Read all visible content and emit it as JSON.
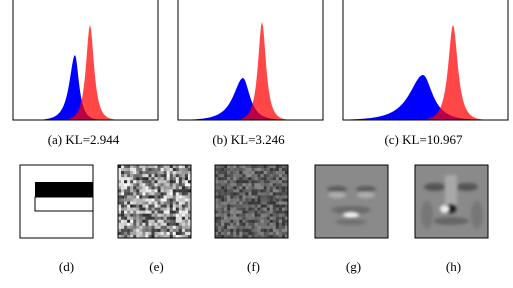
{
  "figure": {
    "top_captions": [
      "(a) KL=2.944",
      "(b) KL=3.246",
      "(c) KL=10.967"
    ],
    "bottom_captions": [
      "(d)",
      "(e)",
      "(f)",
      "(g)",
      "(h)"
    ]
  }
}
